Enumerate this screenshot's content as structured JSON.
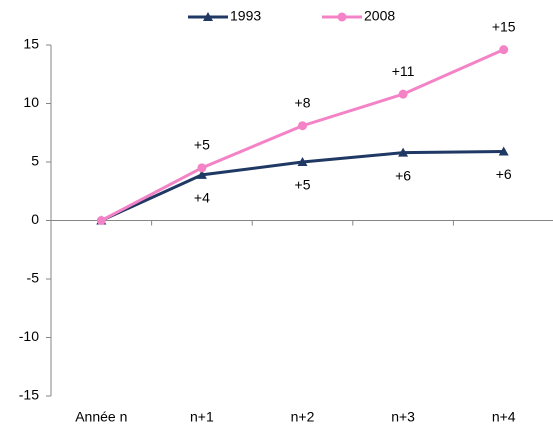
{
  "chart_data": {
    "type": "line",
    "categories": [
      "Année n",
      "n+1",
      "n+2",
      "n+3",
      "n+4"
    ],
    "series": [
      {
        "name": "1993",
        "color": "#1f3864",
        "marker": "triangle",
        "label_side": "below",
        "values": [
          0,
          3.9,
          5.0,
          5.8,
          5.9
        ],
        "value_labels": [
          null,
          "+4",
          "+5",
          "+6",
          "+6"
        ]
      },
      {
        "name": "2008",
        "color": "#f383c6",
        "marker": "circle",
        "label_side": "above",
        "values": [
          0,
          4.5,
          8.1,
          10.8,
          14.6
        ],
        "value_labels": [
          null,
          "+5",
          "+8",
          "+11",
          "+15"
        ]
      }
    ],
    "ylim": [
      -15,
      15
    ],
    "yticks": [
      -15,
      -10,
      -5,
      0,
      5,
      10,
      15
    ],
    "grid": false,
    "legend": "top"
  }
}
